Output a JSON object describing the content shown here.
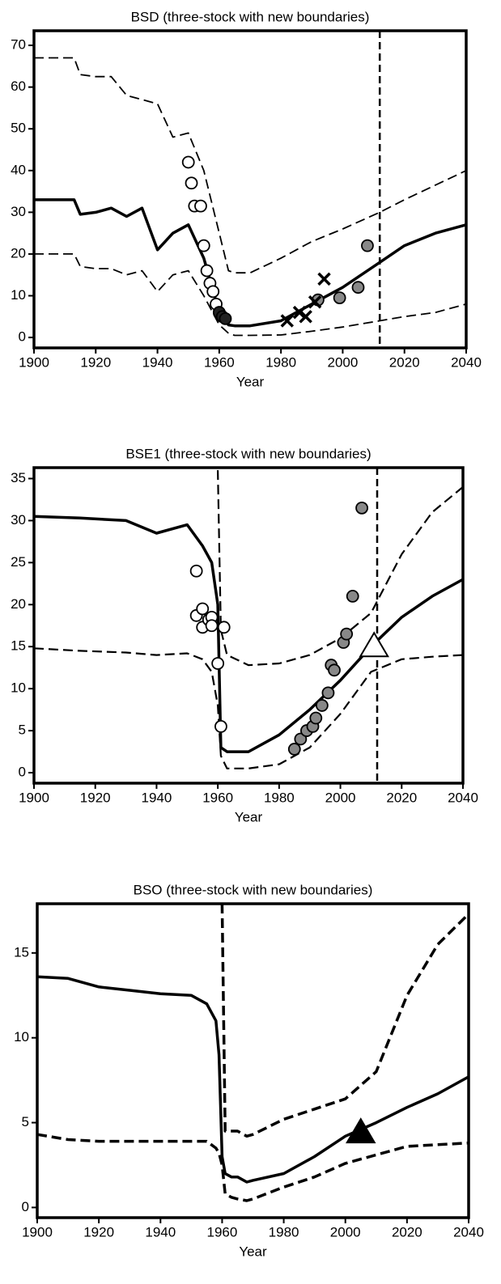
{
  "chart_data": [
    {
      "type": "line",
      "title": "BSD (three-stock with new boundaries)",
      "xlabel": "Year",
      "xlim": [
        1900,
        2040
      ],
      "xticks": [
        1900,
        1920,
        1940,
        1960,
        1980,
        2000,
        2020,
        2040
      ],
      "ylim": [
        -2.5,
        73.5
      ],
      "yticks": [
        0,
        10,
        20,
        30,
        40,
        50,
        60,
        70
      ],
      "x": [
        1900,
        1913,
        1915,
        1920,
        1925,
        1930,
        1935,
        1940,
        1945,
        1950,
        1955,
        1960,
        1963,
        1965,
        1970,
        1980,
        1990,
        2000,
        2012,
        2020,
        2030,
        2040
      ],
      "series": [
        {
          "color": "#000000",
          "width": 3.5,
          "dash": false,
          "values": [
            33,
            33,
            29.5,
            30,
            31,
            29,
            31,
            21,
            25,
            27,
            19,
            6,
            3,
            2.8,
            2.8,
            4,
            8,
            12,
            18,
            22,
            25,
            27
          ]
        },
        {
          "color": "#000000",
          "width": 1.8,
          "dash": true,
          "values": [
            67,
            67,
            63,
            62.5,
            62.5,
            58,
            57,
            56,
            48,
            49,
            40,
            25,
            16,
            15.5,
            15.5,
            19,
            23,
            26,
            30,
            33,
            36.5,
            40
          ]
        },
        {
          "color": "#000000",
          "width": 1.8,
          "dash": true,
          "values": [
            20,
            20,
            17,
            16.5,
            16.5,
            15,
            16,
            11,
            15,
            16,
            10,
            3,
            1,
            0.5,
            0.5,
            0.6,
            1.5,
            2.5,
            4,
            5,
            6,
            8
          ]
        }
      ],
      "points": [
        {
          "marker": "circle",
          "fill": "#ffffff",
          "x": [
            1950,
            1951,
            1952,
            1954,
            1955,
            1956,
            1957,
            1958,
            1959,
            1960
          ],
          "values": [
            42,
            37,
            31.5,
            31.5,
            22,
            16,
            13,
            11,
            8,
            6
          ]
        },
        {
          "marker": "circle",
          "fill": "#222222",
          "x": [
            1960,
            1961,
            1962
          ],
          "values": [
            6,
            5,
            4.5
          ]
        },
        {
          "marker": "circle",
          "fill": "#888888",
          "x": [
            1992,
            1999,
            2005,
            2008
          ],
          "values": [
            9,
            9.5,
            12,
            22
          ]
        },
        {
          "marker": "cross",
          "fill": "#000000",
          "x": [
            1982,
            1986,
            1988,
            1991,
            1994
          ],
          "values": [
            4,
            6,
            5,
            8.5,
            14
          ]
        }
      ],
      "vlines": [
        2012
      ]
    },
    {
      "type": "line",
      "title": "BSE1 (three-stock with new boundaries)",
      "xlabel": "Year",
      "xlim": [
        1900,
        2040
      ],
      "xticks": [
        1900,
        1920,
        1940,
        1960,
        1980,
        2000,
        2020,
        2040
      ],
      "ylim": [
        -1.25,
        36.3
      ],
      "yticks": [
        0,
        5,
        10,
        15,
        20,
        25,
        30,
        35
      ],
      "x": [
        1900,
        1915,
        1930,
        1940,
        1950,
        1955,
        1958,
        1960,
        1961,
        1963,
        1970,
        1980,
        1990,
        2000,
        2010,
        2020,
        2030,
        2040
      ],
      "series": [
        {
          "color": "#000000",
          "width": 3.5,
          "dash": false,
          "values": [
            30.5,
            30.3,
            30,
            28.5,
            29.5,
            27,
            25,
            20,
            3,
            2.5,
            2.5,
            4.5,
            7.5,
            11,
            15,
            18.5,
            21,
            23
          ]
        },
        {
          "color": "#000000",
          "width": 2.2,
          "dash": true,
          "values": [
            null,
            null,
            null,
            null,
            null,
            null,
            null,
            36,
            17,
            14,
            12.8,
            13,
            14,
            16,
            19,
            26,
            31,
            34
          ]
        },
        {
          "color": "#000000",
          "width": 2.2,
          "dash": true,
          "values": [
            14.8,
            14.5,
            14.3,
            14,
            14.2,
            13.5,
            12,
            8,
            2,
            0.5,
            0.5,
            1,
            3,
            7,
            12,
            13.5,
            13.8,
            14
          ]
        }
      ],
      "points": [
        {
          "marker": "circle",
          "fill": "#ffffff",
          "x": [
            1953,
            1953,
            1955,
            1955,
            1957,
            1958,
            1958,
            1962,
            1960,
            1961
          ],
          "values": [
            24,
            18.7,
            19.5,
            17.3,
            18.2,
            18.5,
            17.5,
            17.3,
            13,
            5.5
          ]
        },
        {
          "marker": "circle",
          "fill": "#888888",
          "x": [
            1985,
            1987,
            1989,
            1991,
            1992,
            1994,
            1996,
            1997,
            1998,
            2001,
            2002,
            2004,
            2007
          ],
          "values": [
            2.8,
            4,
            5,
            5.5,
            6.5,
            8,
            9.5,
            12.8,
            12.2,
            15.5,
            16.5,
            21,
            31.5
          ]
        },
        {
          "marker": "triangle",
          "fill": "#ffffff",
          "x": [
            2011
          ],
          "values": [
            15
          ]
        }
      ],
      "vlines": [
        2012
      ]
    },
    {
      "type": "line",
      "title": "BSO (three-stock with new boundaries)",
      "xlabel": "Year",
      "xlim": [
        1900,
        2040
      ],
      "xticks": [
        1900,
        1920,
        1940,
        1960,
        1980,
        2000,
        2020,
        2040
      ],
      "ylim": [
        -0.6,
        17.9
      ],
      "yticks": [
        0,
        5,
        10,
        15
      ],
      "x": [
        1900,
        1910,
        1920,
        1930,
        1940,
        1950,
        1955,
        1958,
        1959,
        1960,
        1961,
        1963,
        1965,
        1968,
        1970,
        1980,
        1990,
        2000,
        2010,
        2020,
        2030,
        2040
      ],
      "series": [
        {
          "color": "#000000",
          "width": 3.5,
          "dash": false,
          "values": [
            13.6,
            13.5,
            13,
            12.8,
            12.6,
            12.5,
            12,
            11,
            9,
            3,
            2,
            1.8,
            1.8,
            1.5,
            1.6,
            2,
            3,
            4.2,
            5,
            5.9,
            6.7,
            7.7
          ]
        },
        {
          "color": "#000000",
          "width": 3.5,
          "dash": true,
          "values": [
            null,
            null,
            null,
            null,
            null,
            null,
            null,
            null,
            null,
            17.9,
            4.5,
            4.5,
            4.5,
            4.2,
            4.3,
            5.2,
            5.8,
            6.4,
            8,
            12.5,
            15.5,
            17.3
          ]
        },
        {
          "color": "#000000",
          "width": 3.5,
          "dash": true,
          "values": [
            4.3,
            4,
            3.9,
            3.9,
            3.9,
            3.9,
            3.9,
            3.5,
            3.2,
            2.5,
            0.8,
            0.6,
            0.5,
            0.4,
            0.5,
            1.2,
            1.8,
            2.6,
            3.1,
            3.6,
            3.7,
            3.8
          ]
        }
      ],
      "points": [
        {
          "marker": "triangle",
          "fill": "#000000",
          "x": [
            2005
          ],
          "values": [
            4.4
          ]
        }
      ],
      "vlines": []
    }
  ]
}
